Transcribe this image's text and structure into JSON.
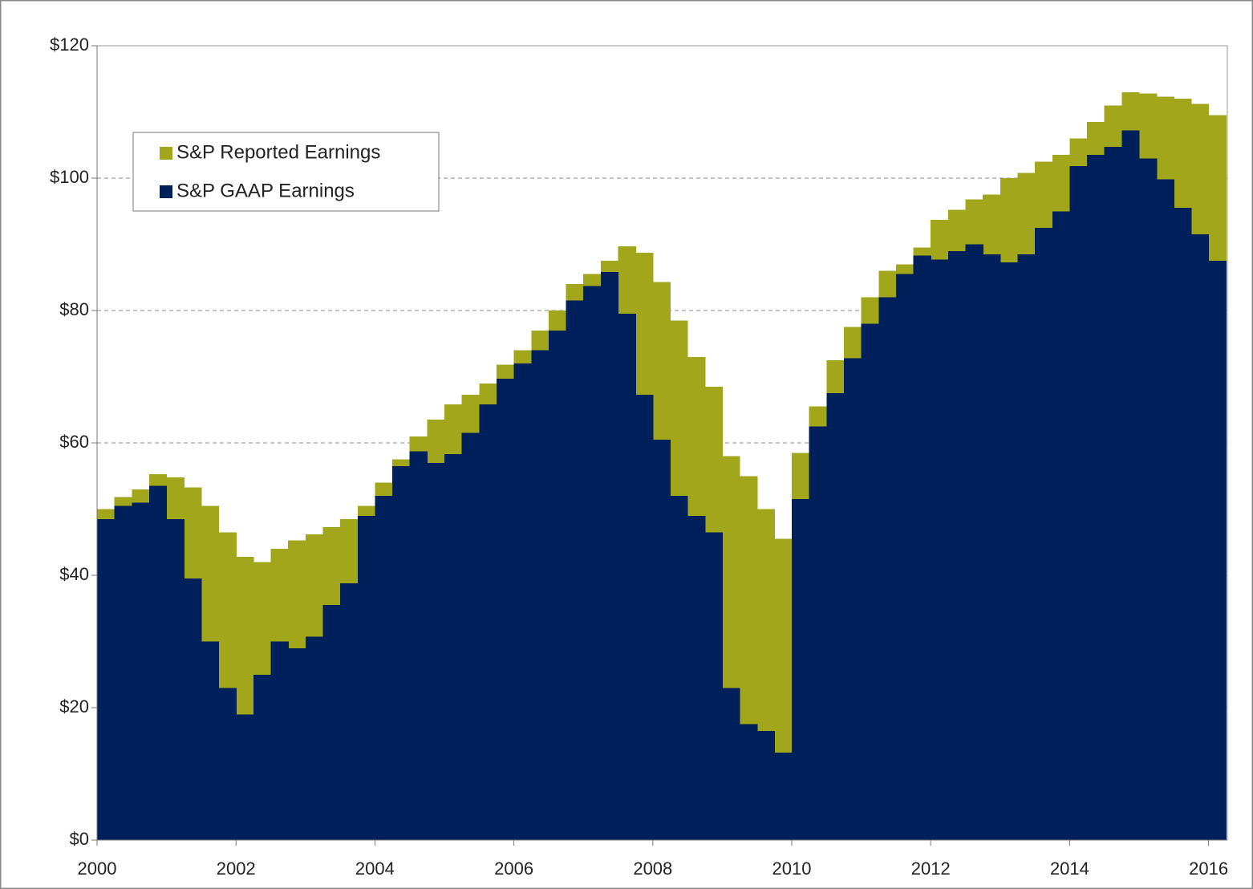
{
  "chart_data": {
    "type": "step-area",
    "legend": "upper left",
    "grid": true,
    "x": [
      2000,
      2000.25,
      2000.5,
      2000.75,
      2001,
      2001.25,
      2001.5,
      2001.75,
      2002,
      2002.25,
      2002.5,
      2002.75,
      2003,
      2003.25,
      2003.5,
      2003.75,
      2004,
      2004.25,
      2004.5,
      2004.75,
      2005,
      2005.25,
      2005.5,
      2005.75,
      2006,
      2006.25,
      2006.5,
      2006.75,
      2007,
      2007.25,
      2007.5,
      2007.75,
      2008,
      2008.25,
      2008.5,
      2008.75,
      2009,
      2009.25,
      2009.5,
      2009.75,
      2010,
      2010.25,
      2010.5,
      2010.75,
      2011,
      2011.25,
      2011.5,
      2011.75,
      2012,
      2012.25,
      2012.5,
      2012.75,
      2013,
      2013.25,
      2013.5,
      2013.75,
      2014,
      2014.25,
      2014.5,
      2014.75,
      2015,
      2015.25,
      2015.5,
      2015.75,
      2016
    ],
    "step": 0.25,
    "series": [
      {
        "name": "S&P Reported Earnings",
        "color": "#a2a61b",
        "values": [
          50,
          51.8,
          53,
          55.3,
          54.8,
          53.3,
          50.5,
          46.5,
          42.8,
          42,
          44,
          45.3,
          46.2,
          47.3,
          48.5,
          50.5,
          54,
          57.5,
          61,
          63.5,
          65.8,
          67.3,
          69,
          71.8,
          74,
          77,
          80,
          84,
          85.5,
          87.5,
          89.7,
          88.7,
          84.3,
          78.5,
          73,
          68.5,
          58,
          55,
          50,
          45.5,
          58.5,
          65.5,
          72.5,
          77.5,
          82,
          86,
          87,
          89.5,
          93.7,
          95.2,
          96.8,
          97.5,
          100,
          100.8,
          102.5,
          103.5,
          106,
          108.5,
          111,
          113,
          112.8,
          112.3,
          112,
          111.2,
          109.5
        ]
      },
      {
        "name": "S&P GAAP Earnings",
        "color": "#00205b",
        "values": [
          48.5,
          50.5,
          51,
          53.5,
          48.5,
          39.5,
          30,
          23,
          19,
          25,
          30,
          29,
          30.7,
          35.5,
          38.8,
          49,
          52,
          56.5,
          58.7,
          57,
          58.3,
          61.5,
          65.8,
          69.7,
          72,
          74,
          77,
          81.5,
          83.7,
          85.8,
          79.5,
          67.3,
          60.5,
          52,
          49,
          46.5,
          23,
          17.5,
          16.5,
          13.2,
          51.5,
          62.5,
          67.5,
          72.8,
          78,
          82,
          85.5,
          88.3,
          87.7,
          89,
          90,
          88.5,
          87.3,
          88.5,
          92.5,
          95,
          101.8,
          103.5,
          104.7,
          107.2,
          103,
          99.8,
          95.5,
          91.5,
          87.5
        ]
      }
    ],
    "xlim": [
      2000,
      2016.27
    ],
    "xticks": [
      2000,
      2002,
      2004,
      2006,
      2008,
      2010,
      2012,
      2014,
      2016
    ],
    "ylim": [
      0,
      120
    ],
    "yticks": [
      {
        "value": 0,
        "label": "$0"
      },
      {
        "value": 20,
        "label": "$20"
      },
      {
        "value": 40,
        "label": "$40"
      },
      {
        "value": 60,
        "label": "$60"
      },
      {
        "value": 80,
        "label": "$80"
      },
      {
        "value": 100,
        "label": "$100"
      },
      {
        "value": 120,
        "label": "$120"
      }
    ]
  }
}
